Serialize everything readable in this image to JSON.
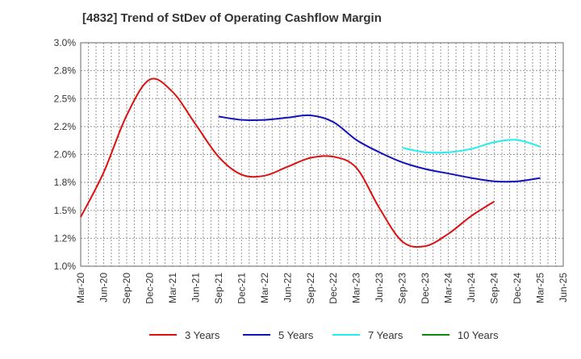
{
  "chart_data": {
    "type": "line",
    "title": "[4832]  Trend of StDev of Operating Cashflow Margin",
    "xlabel": "",
    "ylabel": "",
    "ylim": [
      1.0,
      3.0
    ],
    "y_ticks": [
      "1.0%",
      "1.2%",
      "1.5%",
      "1.8%",
      "2.0%",
      "2.2%",
      "2.5%",
      "2.8%",
      "3.0%"
    ],
    "y_tick_values": [
      1.0,
      1.25,
      1.5,
      1.75,
      2.0,
      2.25,
      2.5,
      2.75,
      3.0
    ],
    "categories": [
      "Mar-20",
      "Jun-20",
      "Sep-20",
      "Dec-20",
      "Mar-21",
      "Jun-21",
      "Sep-21",
      "Dec-21",
      "Mar-22",
      "Jun-22",
      "Sep-22",
      "Dec-22",
      "Mar-23",
      "Jun-23",
      "Sep-23",
      "Dec-23",
      "Mar-24",
      "Jun-24",
      "Sep-24",
      "Dec-24",
      "Mar-25",
      "Jun-25"
    ],
    "grid": true,
    "legend_position": "bottom",
    "series": [
      {
        "name": "3 Years",
        "color": "#dd1111",
        "values": [
          1.44,
          1.84,
          2.35,
          2.67,
          2.56,
          2.27,
          1.98,
          1.82,
          1.81,
          1.89,
          1.97,
          1.98,
          1.88,
          1.52,
          1.22,
          1.18,
          1.29,
          1.45,
          1.58,
          null,
          null,
          null
        ]
      },
      {
        "name": "5 Years",
        "color": "#1111bb",
        "values": [
          null,
          null,
          null,
          null,
          null,
          null,
          2.34,
          2.31,
          2.31,
          2.33,
          2.35,
          2.29,
          2.13,
          2.02,
          1.93,
          1.87,
          1.83,
          1.79,
          1.76,
          1.76,
          1.79,
          null
        ]
      },
      {
        "name": "7 Years",
        "color": "#22eeee",
        "values": [
          null,
          null,
          null,
          null,
          null,
          null,
          null,
          null,
          null,
          null,
          null,
          null,
          null,
          null,
          2.06,
          2.02,
          2.02,
          2.05,
          2.11,
          2.13,
          2.07,
          null
        ]
      },
      {
        "name": "10 Years",
        "color": "#118811",
        "values": [
          null,
          null,
          null,
          null,
          null,
          null,
          null,
          null,
          null,
          null,
          null,
          null,
          null,
          null,
          null,
          null,
          null,
          null,
          null,
          null,
          null,
          null
        ]
      }
    ]
  }
}
